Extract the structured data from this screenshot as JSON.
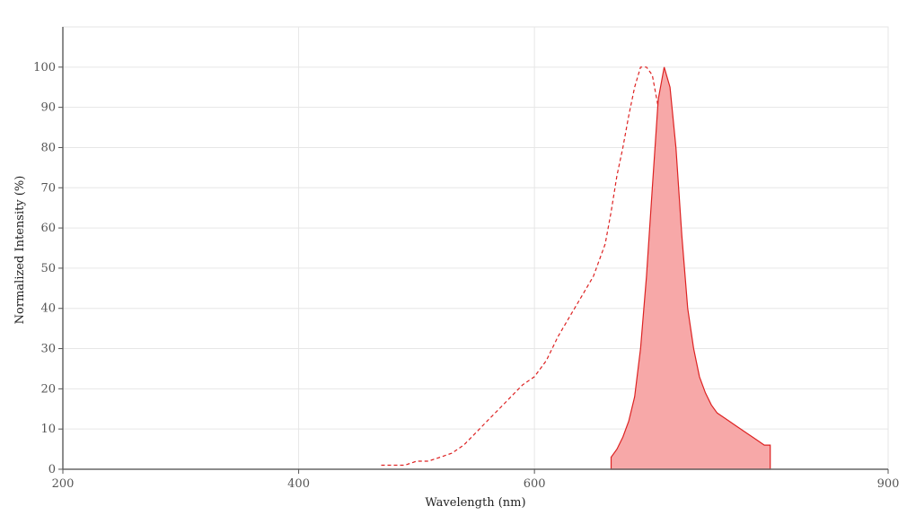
{
  "chart_data": {
    "type": "area",
    "xlabel": "Wavelength (nm)",
    "ylabel": "Normalized Intensity (%)",
    "xlim": [
      200,
      900
    ],
    "ylim": [
      0,
      110
    ],
    "x_ticks": [
      200,
      400,
      600,
      900
    ],
    "y_ticks": [
      0,
      10,
      20,
      30,
      40,
      50,
      60,
      70,
      80,
      90,
      100
    ],
    "grid": true,
    "legend": "none",
    "colors": {
      "line": "#dd2222",
      "fill": "#f7a8a8"
    },
    "series": [
      {
        "style": "dashed-line",
        "x": [
          470,
          480,
          490,
          500,
          510,
          520,
          530,
          540,
          550,
          560,
          570,
          580,
          590,
          600,
          610,
          620,
          630,
          640,
          650,
          660,
          665,
          670,
          675,
          680,
          685,
          690,
          695,
          700,
          705,
          710,
          715,
          720,
          725,
          730,
          735,
          740,
          745,
          750,
          755,
          760,
          770,
          780
        ],
        "y": [
          1,
          1,
          1,
          2,
          2,
          3,
          4,
          6,
          9,
          12,
          15,
          18,
          21,
          23,
          27,
          33,
          38,
          43,
          48,
          56,
          64,
          73,
          80,
          88,
          95,
          100,
          100,
          98,
          90,
          72,
          52,
          35,
          22,
          15,
          10,
          6,
          4,
          2.5,
          1.5,
          1,
          1,
          1
        ]
      },
      {
        "style": "filled-area",
        "x": [
          665,
          670,
          675,
          680,
          685,
          690,
          695,
          700,
          705,
          710,
          715,
          720,
          725,
          730,
          735,
          740,
          745,
          750,
          755,
          760,
          765,
          770,
          775,
          780,
          785,
          790,
          795,
          800
        ],
        "y": [
          3,
          5,
          8,
          12,
          18,
          30,
          48,
          70,
          92,
          100,
          95,
          80,
          58,
          40,
          30,
          23,
          19,
          16,
          14,
          13,
          12,
          11,
          10,
          9,
          8,
          7,
          6,
          6
        ]
      }
    ]
  }
}
